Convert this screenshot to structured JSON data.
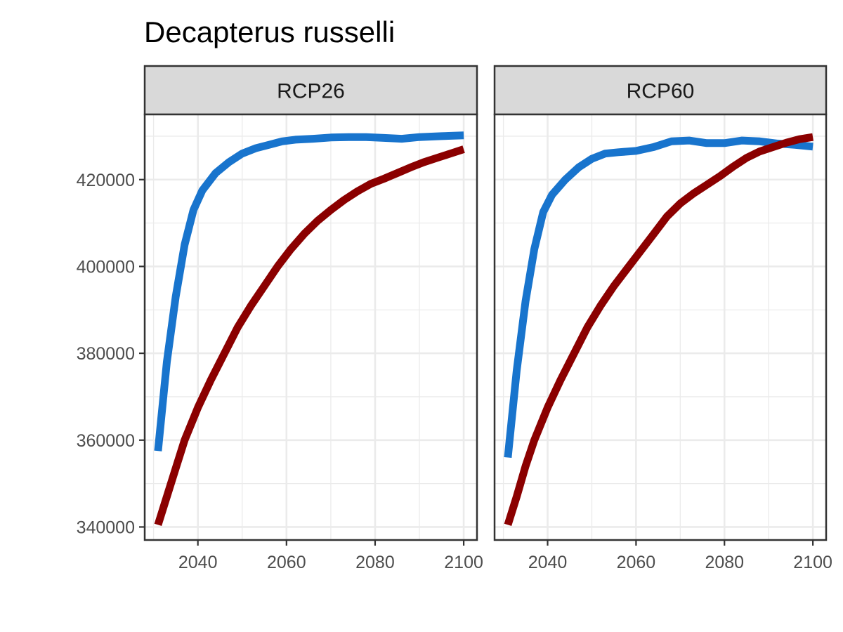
{
  "chart_data": {
    "type": "line",
    "title": "Decapterus russelli",
    "xlabel": "",
    "ylabel": "",
    "xlim": [
      2028,
      2103
    ],
    "ylim": [
      337000,
      435000
    ],
    "x_ticks": [
      2040,
      2060,
      2080,
      2100
    ],
    "y_ticks": [
      340000,
      360000,
      380000,
      400000,
      420000
    ],
    "x_tick_labels": [
      "2040",
      "2060",
      "2080",
      "2100"
    ],
    "y_tick_labels": [
      "340000",
      "360000",
      "380000",
      "400000",
      "420000"
    ],
    "grid": true,
    "legend": "none",
    "colors": {
      "blue_series": "#1874CD",
      "red_series": "#8B0000",
      "panel_border": "#333333",
      "strip_fill": "#D9D9D9",
      "grid": "#EBEBEB"
    },
    "panels": [
      {
        "label": "RCP26",
        "series": [
          {
            "color": "#1874CD",
            "x": [
              2031,
              2033,
              2035,
              2037,
              2039,
              2041,
              2044,
              2047,
              2050,
              2053,
              2056,
              2059,
              2062,
              2066,
              2070,
              2074,
              2078,
              2082,
              2086,
              2090,
              2095,
              2100
            ],
            "y": [
              357500,
              378000,
              393000,
              405000,
              413000,
              417500,
              421500,
              424000,
              426000,
              427200,
              428000,
              428800,
              429200,
              429400,
              429700,
              429800,
              429800,
              429600,
              429400,
              429800,
              430000,
              430200
            ]
          },
          {
            "color": "#8B0000",
            "x": [
              2031,
              2033,
              2035,
              2037,
              2040,
              2043,
              2046,
              2049,
              2052,
              2055,
              2058,
              2061,
              2064,
              2067,
              2070,
              2073,
              2076,
              2079,
              2082,
              2085,
              2088,
              2091,
              2094,
              2097,
              2100
            ],
            "y": [
              340500,
              347000,
              353500,
              360000,
              367500,
              374000,
              380000,
              386000,
              391000,
              395500,
              400000,
              404000,
              407500,
              410500,
              413000,
              415300,
              417300,
              419000,
              420200,
              421500,
              422800,
              424000,
              425000,
              426000,
              427000
            ]
          }
        ]
      },
      {
        "label": "RCP60",
        "series": [
          {
            "color": "#1874CD",
            "x": [
              2031,
              2033,
              2035,
              2037,
              2039,
              2041,
              2044,
              2047,
              2050,
              2053,
              2056,
              2060,
              2064,
              2068,
              2072,
              2076,
              2080,
              2084,
              2088,
              2092,
              2096,
              2100
            ],
            "y": [
              356000,
              376000,
              392000,
              404000,
              412500,
              416500,
              420000,
              422800,
              424800,
              426000,
              426300,
              426600,
              427500,
              428800,
              429000,
              428400,
              428400,
              429000,
              428800,
              428300,
              428000,
              427600
            ]
          },
          {
            "color": "#8B0000",
            "x": [
              2031,
              2033,
              2035,
              2037,
              2040,
              2043,
              2046,
              2049,
              2052,
              2055,
              2058,
              2061,
              2064,
              2067,
              2070,
              2073,
              2076,
              2079,
              2082,
              2085,
              2088,
              2091,
              2094,
              2097,
              2100
            ],
            "y": [
              340500,
              347000,
              354000,
              360000,
              367500,
              374000,
              380000,
              386000,
              391000,
              395500,
              399500,
              403500,
              407500,
              411500,
              414500,
              416800,
              418800,
              420800,
              423000,
              425000,
              426500,
              427500,
              428500,
              429300,
              429800
            ]
          }
        ]
      }
    ]
  }
}
